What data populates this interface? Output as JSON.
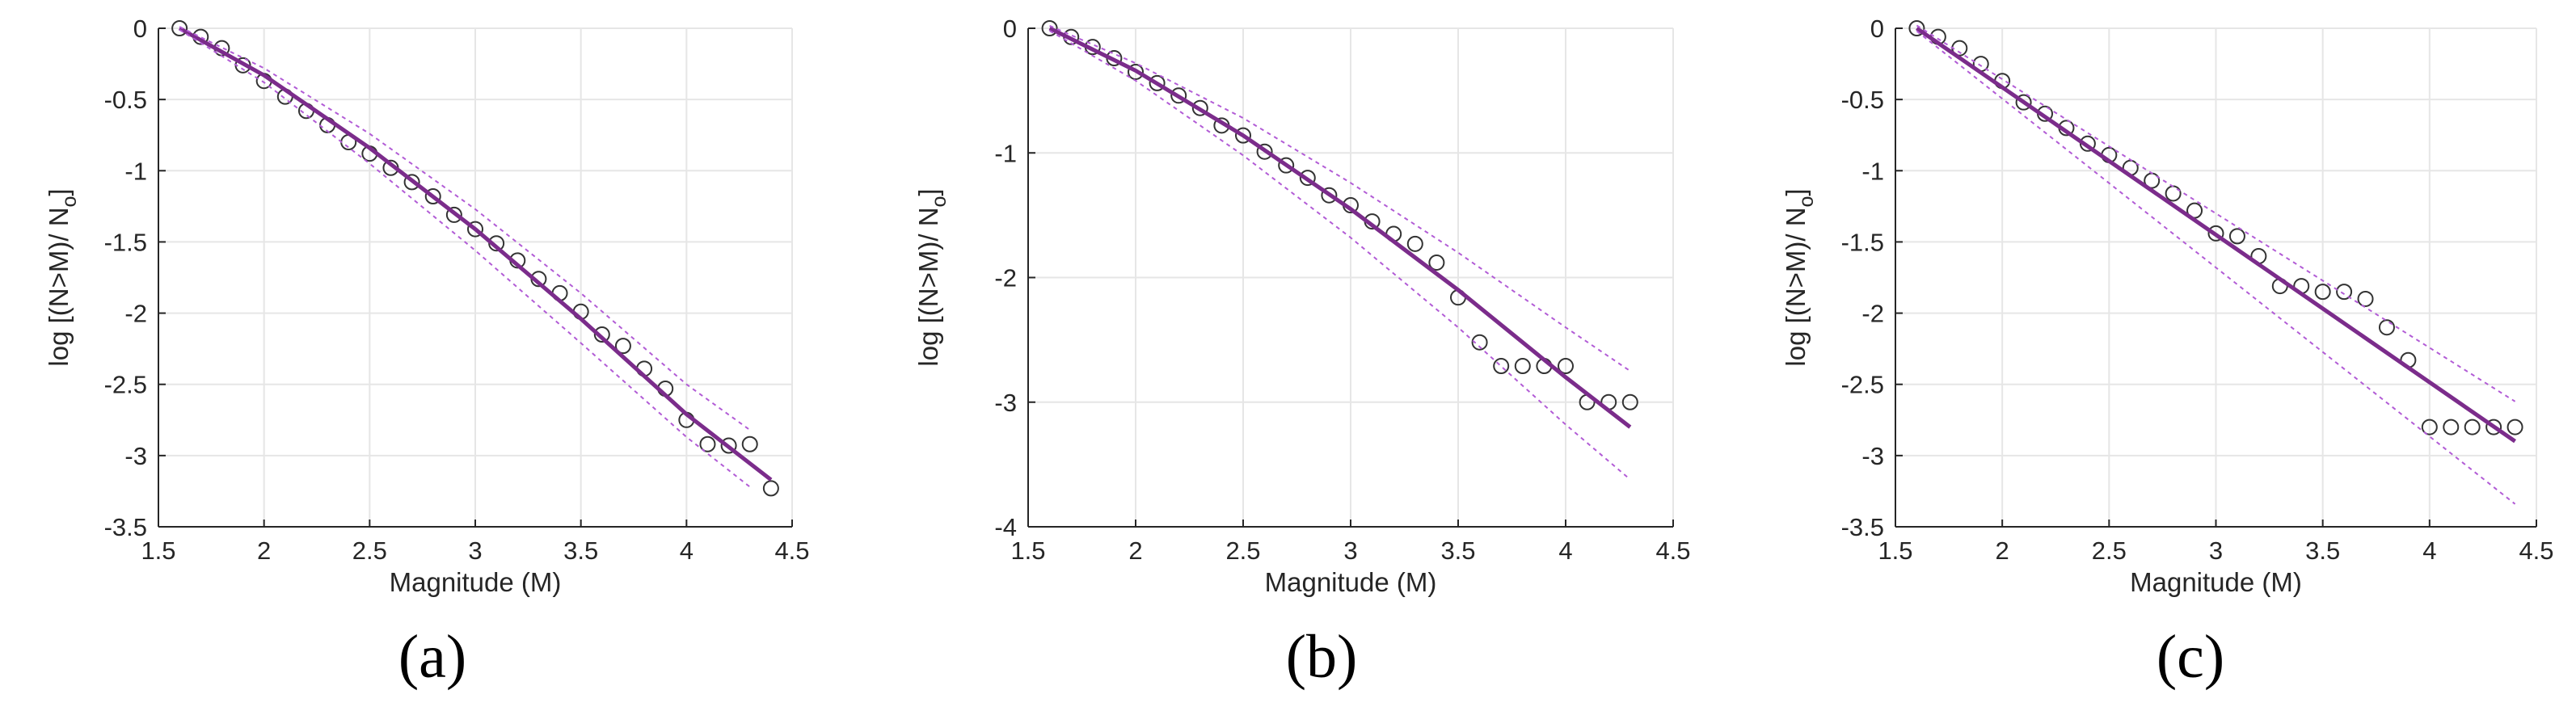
{
  "figure": {
    "colors": {
      "fit": "#7B2C8B",
      "bound": "#B25CD6",
      "marker": "#333333",
      "grid": "#e6e6e6",
      "axis": "#262626"
    }
  },
  "chart_data": [
    {
      "type": "scatter",
      "panel_label": "(a)",
      "xlabel": "Magnitude (M)",
      "ylabel": "log [(N>M)/ N",
      "ylabel_sub": "o",
      "ylabel_close": "]",
      "xlim": [
        1.5,
        4.5
      ],
      "ylim": [
        -3.5,
        0
      ],
      "xticks": [
        1.5,
        2,
        2.5,
        3,
        3.5,
        4,
        4.5
      ],
      "xtick_labels": [
        "1.5",
        "2",
        "2.5",
        "3",
        "3.5",
        "4",
        "4.5"
      ],
      "yticks": [
        -3.5,
        -3,
        -2.5,
        -2,
        -1.5,
        -1,
        -0.5,
        0
      ],
      "ytick_labels": [
        "-3.5",
        "-3",
        "-2.5",
        "-2",
        "-1.5",
        "-1",
        "-0.5",
        "0"
      ],
      "grid": true,
      "series": [
        {
          "name": "observed",
          "kind": "markers",
          "x": [
            1.6,
            1.7,
            1.8,
            1.9,
            2.0,
            2.1,
            2.2,
            2.3,
            2.4,
            2.5,
            2.6,
            2.7,
            2.8,
            2.9,
            3.0,
            3.1,
            3.2,
            3.3,
            3.4,
            3.5,
            3.6,
            3.7,
            3.8,
            3.9,
            4.0,
            4.1,
            4.2,
            4.3,
            4.4
          ],
          "y": [
            0,
            -0.06,
            -0.14,
            -0.26,
            -0.37,
            -0.48,
            -0.58,
            -0.68,
            -0.8,
            -0.88,
            -0.98,
            -1.08,
            -1.18,
            -1.31,
            -1.41,
            -1.51,
            -1.63,
            -1.76,
            -1.86,
            -1.99,
            -2.15,
            -2.23,
            -2.39,
            -2.53,
            -2.75,
            -2.92,
            -2.93,
            -2.92,
            -3.23
          ]
        },
        {
          "name": "fit",
          "kind": "line",
          "x": [
            1.6,
            2.0,
            2.5,
            3.0,
            3.5,
            4.0,
            4.4
          ],
          "y": [
            0,
            -0.33,
            -0.84,
            -1.41,
            -2.04,
            -2.71,
            -3.17
          ]
        },
        {
          "name": "upper bound",
          "kind": "dashed",
          "x": [
            1.6,
            2.0,
            2.5,
            3.0,
            3.5,
            4.0,
            4.3
          ],
          "y": [
            0.01,
            -0.28,
            -0.74,
            -1.27,
            -1.86,
            -2.5,
            -2.82
          ]
        },
        {
          "name": "lower bound",
          "kind": "dashed",
          "x": [
            1.6,
            2.0,
            2.5,
            3.0,
            3.5,
            4.0,
            4.3
          ],
          "y": [
            -0.01,
            -0.38,
            -0.95,
            -1.56,
            -2.21,
            -2.87,
            -3.22
          ]
        }
      ]
    },
    {
      "type": "scatter",
      "panel_label": "(b)",
      "xlabel": "Magnitude (M)",
      "ylabel": "log [(N>M)/ N",
      "ylabel_sub": "o",
      "ylabel_close": "]",
      "xlim": [
        1.5,
        4.5
      ],
      "ylim": [
        -4,
        0
      ],
      "xticks": [
        1.5,
        2,
        2.5,
        3,
        3.5,
        4,
        4.5
      ],
      "xtick_labels": [
        "1.5",
        "2",
        "2.5",
        "3",
        "3.5",
        "4",
        "4.5"
      ],
      "yticks": [
        -4,
        -3,
        -2,
        -1,
        0
      ],
      "ytick_labels": [
        "-4",
        "-3",
        "-2",
        "-1",
        "0"
      ],
      "grid": true,
      "series": [
        {
          "name": "observed",
          "kind": "markers",
          "x": [
            1.6,
            1.7,
            1.8,
            1.9,
            2.0,
            2.1,
            2.2,
            2.3,
            2.4,
            2.5,
            2.6,
            2.7,
            2.8,
            2.9,
            3.0,
            3.1,
            3.2,
            3.3,
            3.4,
            3.5,
            3.6,
            3.7,
            3.8,
            3.9,
            4.0,
            4.1,
            4.2,
            4.3
          ],
          "y": [
            0,
            -0.07,
            -0.15,
            -0.24,
            -0.35,
            -0.44,
            -0.54,
            -0.64,
            -0.78,
            -0.86,
            -0.99,
            -1.1,
            -1.2,
            -1.34,
            -1.42,
            -1.55,
            -1.65,
            -1.73,
            -1.88,
            -2.16,
            -2.52,
            -2.71,
            -2.71,
            -2.71,
            -2.71,
            -3.0,
            -3.0,
            -3.0
          ]
        },
        {
          "name": "fit",
          "kind": "line",
          "x": [
            1.6,
            2.0,
            2.5,
            3.0,
            3.5,
            4.0,
            4.3
          ],
          "y": [
            0,
            -0.34,
            -0.86,
            -1.45,
            -2.1,
            -2.8,
            -3.2
          ]
        },
        {
          "name": "upper bound",
          "kind": "dashed",
          "x": [
            1.6,
            2.0,
            2.5,
            3.0,
            3.5,
            4.0,
            4.3
          ],
          "y": [
            0.02,
            -0.28,
            -0.72,
            -1.24,
            -1.8,
            -2.4,
            -2.75
          ]
        },
        {
          "name": "lower bound",
          "kind": "dashed",
          "x": [
            1.6,
            2.0,
            2.5,
            3.0,
            3.5,
            4.0,
            4.3
          ],
          "y": [
            -0.02,
            -0.42,
            -1.02,
            -1.68,
            -2.4,
            -3.18,
            -3.62
          ]
        }
      ]
    },
    {
      "type": "scatter",
      "panel_label": "(c)",
      "xlabel": "Magnitude (M)",
      "ylabel": "log [(N>M)/ N",
      "ylabel_sub": "o",
      "ylabel_close": "]",
      "xlim": [
        1.5,
        4.5
      ],
      "ylim": [
        -3.5,
        0
      ],
      "xticks": [
        1.5,
        2,
        2.5,
        3,
        3.5,
        4,
        4.5
      ],
      "xtick_labels": [
        "1.5",
        "2",
        "2.5",
        "3",
        "3.5",
        "4",
        "4.5"
      ],
      "yticks": [
        -3.5,
        -3,
        -2.5,
        -2,
        -1.5,
        -1,
        -0.5,
        0
      ],
      "ytick_labels": [
        "-3.5",
        "-3",
        "-2.5",
        "-2",
        "-1.5",
        "-1",
        "-0.5",
        "0"
      ],
      "grid": true,
      "series": [
        {
          "name": "observed",
          "kind": "markers",
          "x": [
            1.6,
            1.7,
            1.8,
            1.9,
            2.0,
            2.1,
            2.2,
            2.3,
            2.4,
            2.5,
            2.6,
            2.7,
            2.8,
            2.9,
            3.0,
            3.1,
            3.2,
            3.3,
            3.4,
            3.5,
            3.6,
            3.7,
            3.8,
            3.9,
            4.0,
            4.1,
            4.2,
            4.3,
            4.4
          ],
          "y": [
            0,
            -0.06,
            -0.14,
            -0.25,
            -0.37,
            -0.52,
            -0.6,
            -0.7,
            -0.81,
            -0.89,
            -0.98,
            -1.07,
            -1.16,
            -1.28,
            -1.44,
            -1.46,
            -1.6,
            -1.81,
            -1.81,
            -1.85,
            -1.85,
            -1.9,
            -2.1,
            -2.33,
            -2.8,
            -2.8,
            -2.8,
            -2.8,
            -2.8
          ]
        },
        {
          "name": "fit",
          "kind": "line",
          "x": [
            1.6,
            4.4
          ],
          "y": [
            0,
            -2.9
          ]
        },
        {
          "name": "upper bound",
          "kind": "dashed",
          "x": [
            1.6,
            4.4
          ],
          "y": [
            0.02,
            -2.62
          ]
        },
        {
          "name": "lower bound",
          "kind": "dashed",
          "x": [
            1.6,
            4.4
          ],
          "y": [
            -0.02,
            -3.34
          ]
        }
      ]
    }
  ]
}
